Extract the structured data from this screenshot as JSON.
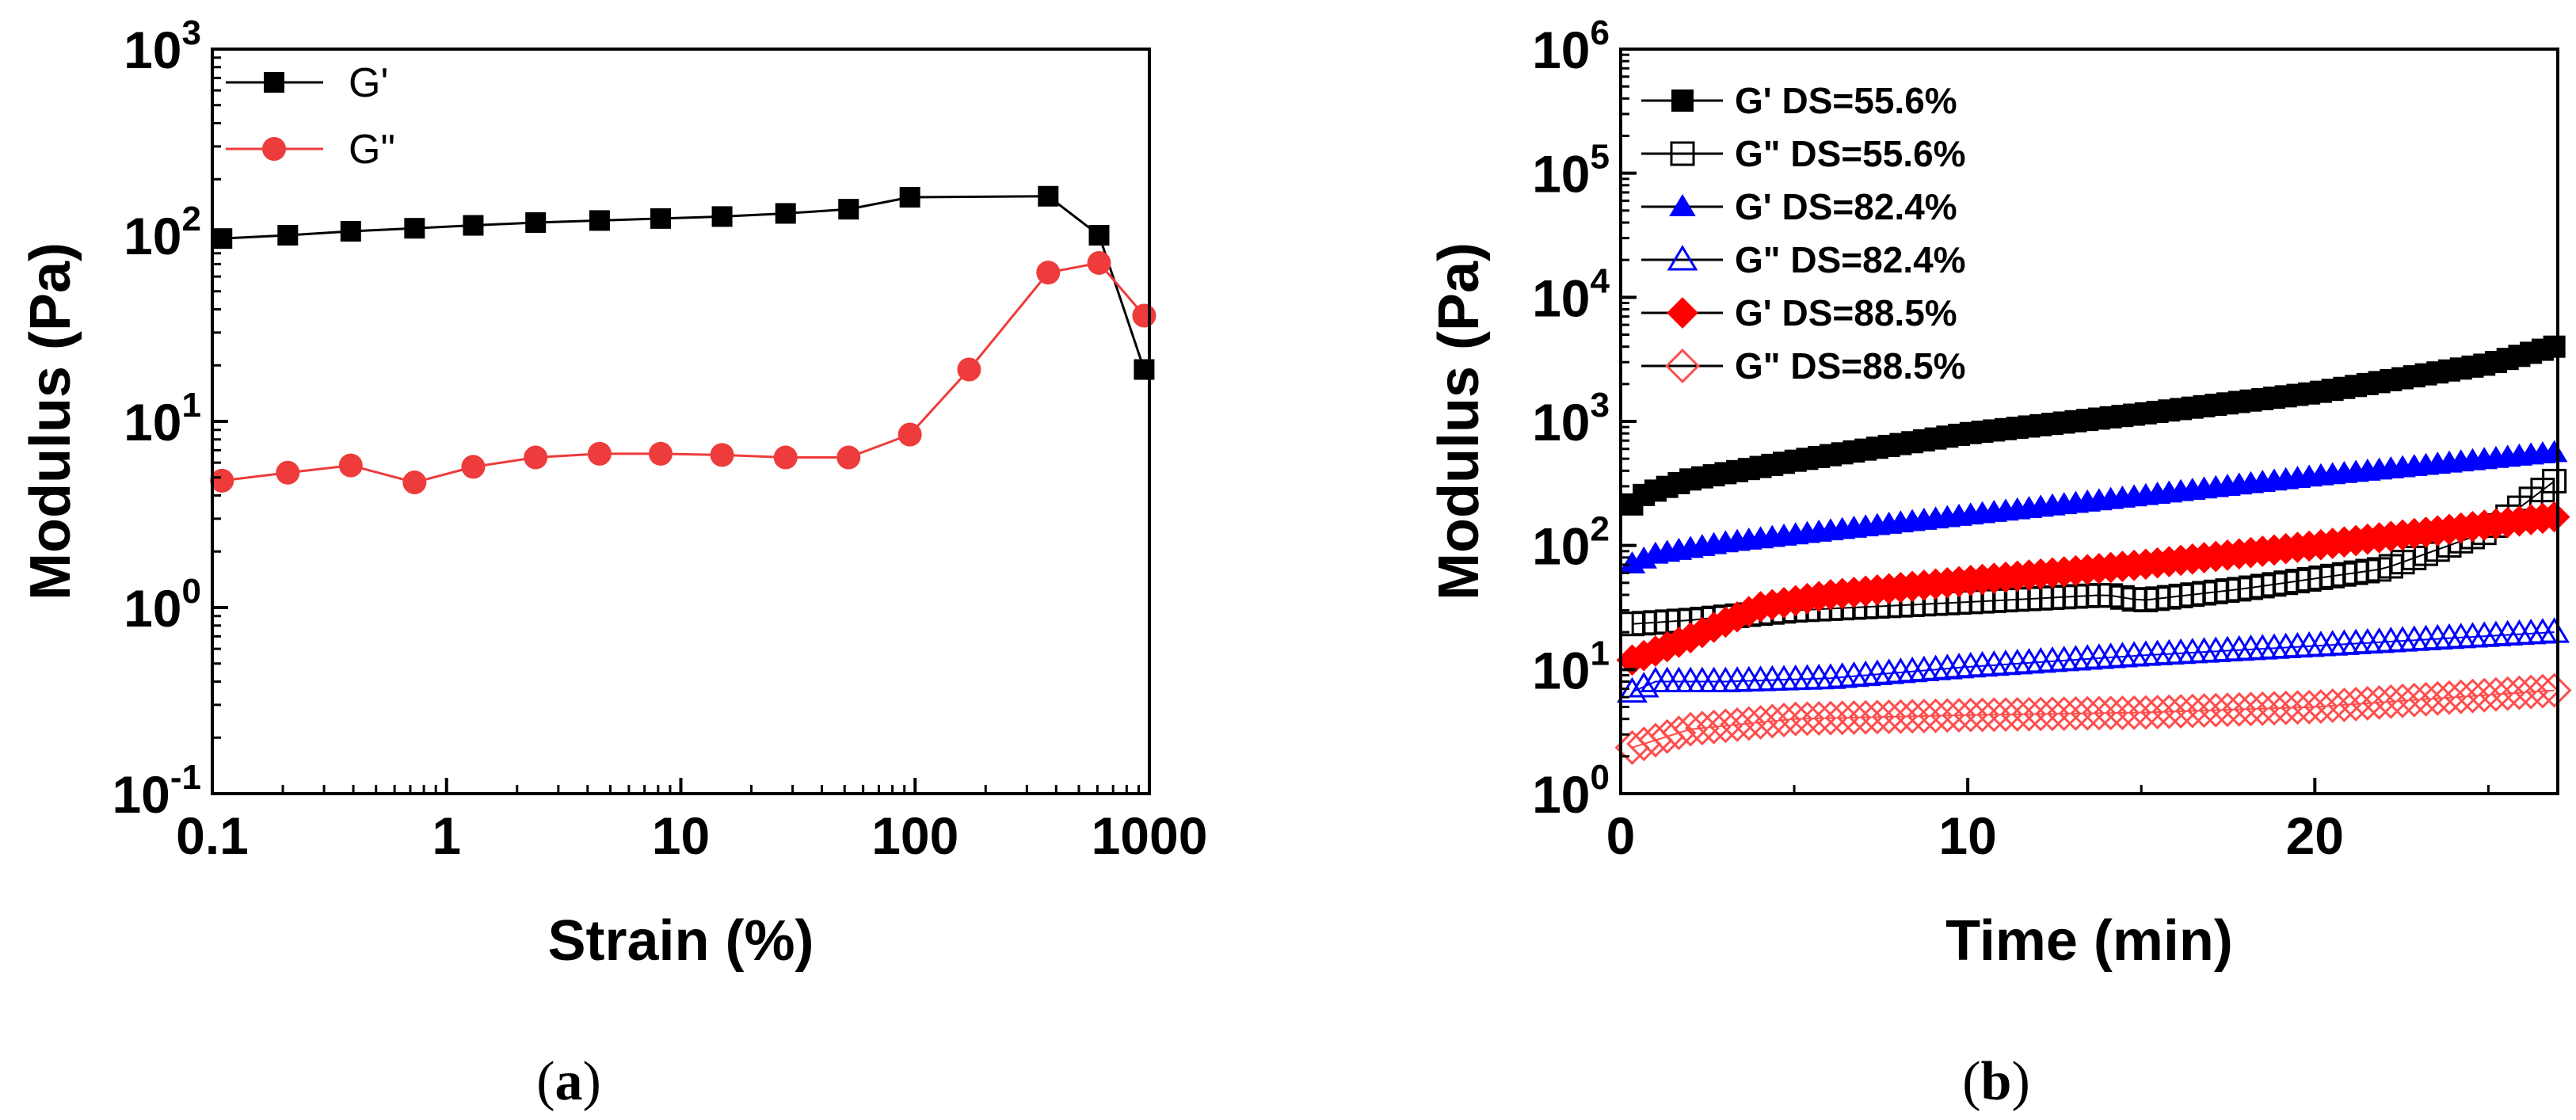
{
  "chart_data": [
    {
      "id": "a",
      "type": "line",
      "x_scale": "log",
      "y_scale": "log",
      "xlabel": "Strain (%)",
      "ylabel": "Modulus (Pa)",
      "xlim": [
        0.1,
        1000
      ],
      "ylim": [
        0.1,
        1000
      ],
      "x_ticks": [
        "0.1",
        "1",
        "10",
        "100",
        "1000"
      ],
      "y_ticks": [
        {
          "base": "10",
          "exp": "-1"
        },
        {
          "base": "10",
          "exp": "0"
        },
        {
          "base": "10",
          "exp": "1"
        },
        {
          "base": "10",
          "exp": "2"
        },
        {
          "base": "10",
          "exp": "3"
        }
      ],
      "legend_position": "top-left",
      "panel_label": {
        "open": "(",
        "letter": "a",
        "close": ")"
      },
      "series": [
        {
          "name": "G'",
          "color": "#000000",
          "marker": "square",
          "filled": true,
          "x": [
            0.11,
            0.21,
            0.39,
            0.73,
            1.3,
            2.4,
            4.5,
            8.2,
            15,
            28,
            52,
            95,
            370,
            610,
            950
          ],
          "y": [
            96,
            100,
            105,
            109,
            113,
            117,
            120,
            123,
            126,
            131,
            138,
            160,
            162,
            100,
            19
          ]
        },
        {
          "name": "G\"",
          "color": "#ee3b3b",
          "marker": "circle",
          "filled": true,
          "x": [
            0.11,
            0.21,
            0.39,
            0.73,
            1.3,
            2.4,
            4.5,
            8.2,
            15,
            28,
            52,
            95,
            170,
            370,
            610,
            950
          ],
          "y": [
            4.8,
            5.3,
            5.8,
            4.7,
            5.7,
            6.4,
            6.7,
            6.7,
            6.6,
            6.4,
            6.4,
            8.5,
            19,
            63,
            71,
            37
          ]
        }
      ]
    },
    {
      "id": "b",
      "type": "scatter",
      "x_scale": "linear",
      "y_scale": "log",
      "xlabel": "Time (min)",
      "ylabel": "Modulus (Pa)",
      "xlim": [
        0,
        27
      ],
      "ylim": [
        1,
        1000000
      ],
      "x_ticks": [
        "0",
        "10",
        "20"
      ],
      "y_ticks": [
        {
          "base": "10",
          "exp": "0"
        },
        {
          "base": "10",
          "exp": "1"
        },
        {
          "base": "10",
          "exp": "2"
        },
        {
          "base": "10",
          "exp": "3"
        },
        {
          "base": "10",
          "exp": "4"
        },
        {
          "base": "10",
          "exp": "5"
        },
        {
          "base": "10",
          "exp": "6"
        }
      ],
      "legend_position": "top-left",
      "panel_label": {
        "open": "(",
        "letter": "b",
        "close": ")"
      },
      "series": [
        {
          "name": "G'  DS=55.6%",
          "color": "#000000",
          "marker": "square",
          "filled": true,
          "t_start": 0.33,
          "t_end": 26.9,
          "points": 80,
          "v_start": 180,
          "v_end": 4000,
          "profile": [
            [
              0,
              180
            ],
            [
              0.7,
              260
            ],
            [
              2,
              340
            ],
            [
              5,
              480
            ],
            [
              10,
              800
            ],
            [
              15,
              1150
            ],
            [
              20,
              1700
            ],
            [
              25,
              2900
            ],
            [
              26.9,
              4000
            ]
          ]
        },
        {
          "name": "G\" DS=55.6%",
          "color": "#000000",
          "marker": "square",
          "filled": false,
          "t_start": 0.33,
          "t_end": 26.9,
          "points": 80,
          "v_start": 23,
          "v_end": 330,
          "profile": [
            [
              0,
              23
            ],
            [
              2,
              25
            ],
            [
              5,
              30
            ],
            [
              10,
              35
            ],
            [
              14,
              40
            ],
            [
              15,
              36
            ],
            [
              18,
              45
            ],
            [
              22,
              65
            ],
            [
              25,
              130
            ],
            [
              26.9,
              330
            ]
          ]
        },
        {
          "name": "G'  DS=82.4%",
          "color": "#0000ff",
          "marker": "triangle",
          "filled": true,
          "t_start": 0.33,
          "t_end": 26.9,
          "points": 80,
          "v_start": 65,
          "v_end": 560,
          "profile": [
            [
              0,
              65
            ],
            [
              1,
              85
            ],
            [
              3,
              105
            ],
            [
              10,
              175
            ],
            [
              15,
              250
            ],
            [
              20,
              360
            ],
            [
              26.9,
              560
            ]
          ]
        },
        {
          "name": "G\" DS=82.4%",
          "color": "#0000ff",
          "marker": "triangle",
          "filled": false,
          "t_start": 0.33,
          "t_end": 26.9,
          "points": 80,
          "v_start": 6,
          "v_end": 20,
          "profile": [
            [
              0,
              6
            ],
            [
              1,
              8
            ],
            [
              3,
              8
            ],
            [
              6,
              8.5
            ],
            [
              10,
              10.5
            ],
            [
              15,
              13
            ],
            [
              20,
              15.5
            ],
            [
              26.9,
              20
            ]
          ]
        },
        {
          "name": "G'  DS=88.5%",
          "color": "#ff0000",
          "marker": "diamond",
          "filled": true,
          "t_start": 0.33,
          "t_end": 26.9,
          "points": 80,
          "v_start": 11,
          "v_end": 170,
          "profile": [
            [
              0,
              11
            ],
            [
              2,
              18
            ],
            [
              4,
              32
            ],
            [
              6,
              40
            ],
            [
              10,
              52
            ],
            [
              15,
              70
            ],
            [
              20,
              100
            ],
            [
              26.9,
              170
            ]
          ]
        },
        {
          "name": "G\" DS=88.5%",
          "color": "#ff4d4d",
          "marker": "diamond",
          "filled": false,
          "t_start": 0.33,
          "t_end": 26.9,
          "points": 80,
          "v_start": 2.2,
          "v_end": 6.8,
          "profile": [
            [
              0,
              2.2
            ],
            [
              2,
              3.3
            ],
            [
              5,
              4.0
            ],
            [
              10,
              4.3
            ],
            [
              15,
              4.5
            ],
            [
              20,
              5.0
            ],
            [
              26.9,
              6.8
            ]
          ]
        }
      ]
    }
  ]
}
